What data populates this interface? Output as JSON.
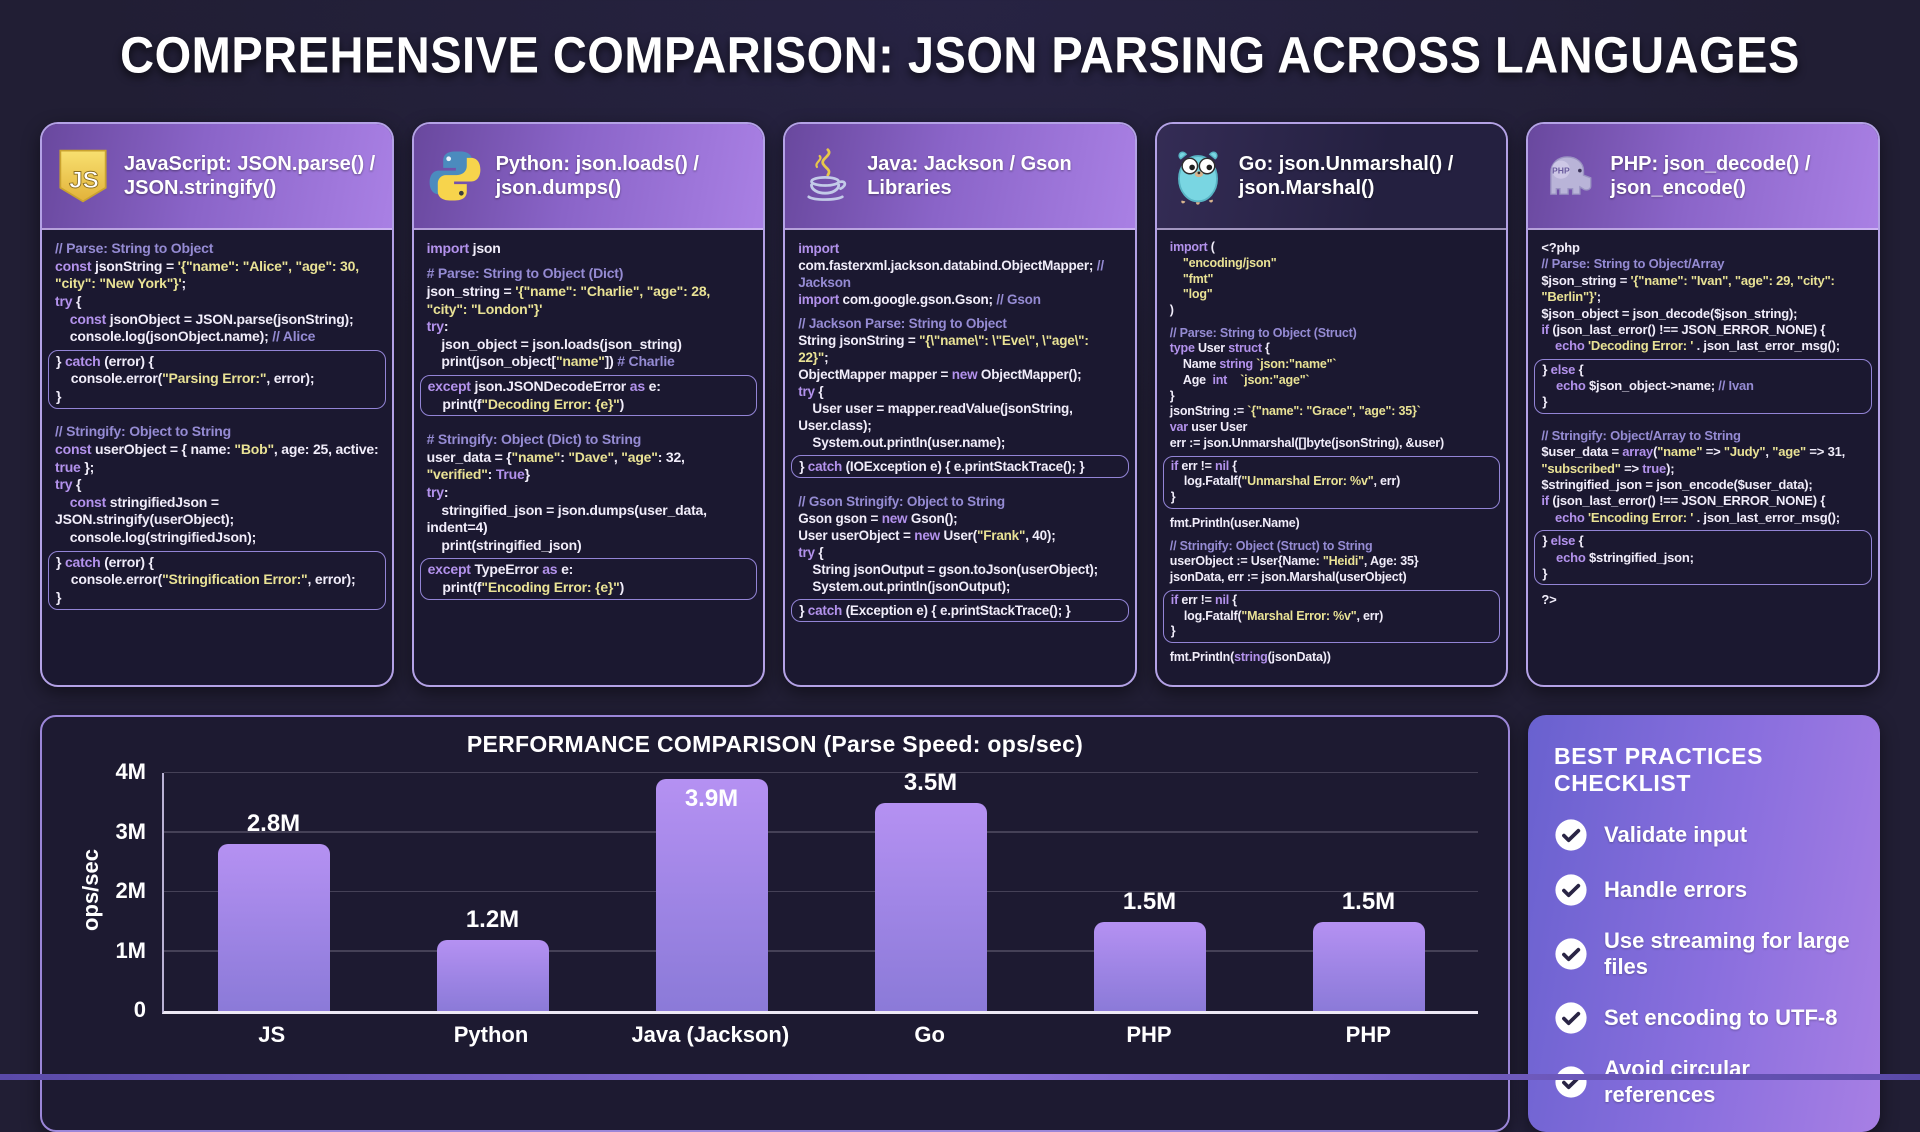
{
  "page": {
    "title": "COMPREHENSIVE COMPARISON: JSON PARSING ACROSS LANGUAGES"
  },
  "theme": {
    "background": "#211e34",
    "panel_border": "#b4a2e6",
    "code_background": "#1b1830",
    "header_gradient_from": "#69489e",
    "header_gradient_to": "#a980e4",
    "keyword_color": "#b392ec",
    "string_color": "#e9e295",
    "comment_color": "#958bd3",
    "bar_gradient_top": "#b591f2",
    "bar_gradient_bottom": "#8b7ad8",
    "checklist_gradient_from": "#6961cf",
    "checklist_gradient_to": "#a77fe4"
  },
  "panels": [
    {
      "id": "javascript",
      "icon": "javascript-logo-icon",
      "title": "JavaScript: JSON.parse() / JSON.stringify()",
      "code": [
        {
          "box": false,
          "lines": [
            "// Parse: String to Object",
            "const jsonString = '{\"name\": \"Alice\", \"age\": 30, \"city\": \"New York\"}';",
            "try {",
            "    const jsonObject = JSON.parse(jsonString);",
            "    console.log(jsonObject.name); // Alice"
          ]
        },
        {
          "box": true,
          "lines": [
            "} catch (error) {",
            "    console.error(\"Parsing Error:\", error);",
            "}"
          ]
        },
        {
          "box": false,
          "lines": [
            "",
            "// Stringify: Object to String",
            "const userObject = { name: \"Bob\", age: 25, active: true };",
            "try {",
            "    const stringifiedJson = JSON.stringify(userObject);",
            "    console.log(stringifiedJson);"
          ]
        },
        {
          "box": true,
          "lines": [
            "} catch (error) {",
            "    console.error(\"Stringification Error:\", error);",
            "}"
          ]
        }
      ]
    },
    {
      "id": "python",
      "icon": "python-logo-icon",
      "title": "Python: json.loads() / json.dumps()",
      "code": [
        {
          "box": false,
          "lines": [
            "import json",
            "",
            "# Parse: String to Object (Dict)",
            "json_string = '{\"name\": \"Charlie\", \"age\": 28, \"city\": \"London\"}'",
            "try:",
            "    json_object = json.loads(json_string)",
            "    print(json_object[\"name\"]) # Charlie"
          ]
        },
        {
          "box": true,
          "lines": [
            "except json.JSONDecodeError as e:",
            "    print(f\"Decoding Error: {e}\")"
          ]
        },
        {
          "box": false,
          "lines": [
            "",
            "# Stringify: Object (Dict) to String",
            "user_data = {\"name\": \"Dave\", \"age\": 32, \"verified\": True}",
            "try:",
            "    stringified_json = json.dumps(user_data, indent=4)",
            "    print(stringified_json)"
          ]
        },
        {
          "box": true,
          "lines": [
            "except TypeError as e:",
            "    print(f\"Encoding Error: {e}\")"
          ]
        }
      ]
    },
    {
      "id": "java",
      "icon": "java-logo-icon",
      "title": "Java: Jackson / Gson Libraries",
      "code": [
        {
          "box": false,
          "lines": [
            "import com.fasterxml.jackson.databind.ObjectMapper; // Jackson",
            "import com.google.gson.Gson; // Gson",
            "",
            "// Jackson Parse: String to Object",
            "String jsonString = \"{\\\"name\\\": \\\"Eve\\\", \\\"age\\\": 22}\";",
            "ObjectMapper mapper = new ObjectMapper();",
            "try {",
            "    User user = mapper.readValue(jsonString, User.class);",
            "    System.out.println(user.name);"
          ]
        },
        {
          "box": true,
          "lines": [
            "} catch (IOException e) { e.printStackTrace(); }"
          ]
        },
        {
          "box": false,
          "lines": [
            "",
            "// Gson Stringify: Object to String",
            "Gson gson = new Gson();",
            "User userObject = new User(\"Frank\", 40);",
            "try {",
            "    String jsonOutput = gson.toJson(userObject);",
            "    System.out.println(jsonOutput);"
          ]
        },
        {
          "box": true,
          "lines": [
            "} catch (Exception e) { e.printStackTrace(); }"
          ]
        }
      ]
    },
    {
      "id": "go",
      "icon": "go-gopher-logo-icon",
      "title": "Go: json.Unmarshal() / json.Marshal()",
      "code": [
        {
          "box": false,
          "lines": [
            "import (",
            "    \"encoding/json\"",
            "    \"fmt\"",
            "    \"log\"",
            ")",
            "",
            "// Parse: String to Object (Struct)",
            "type User struct {",
            "    Name string `json:\"name\"`",
            "    Age  int    `json:\"age\"`",
            "}",
            "jsonString := `{\"name\": \"Grace\", \"age\": 35}`",
            "var user User",
            "err := json.Unmarshal([]byte(jsonString), &user)"
          ]
        },
        {
          "box": true,
          "lines": [
            "if err != nil {",
            "    log.Fatalf(\"Unmarshal Error: %v\", err)",
            "}"
          ]
        },
        {
          "box": false,
          "lines": [
            "fmt.Println(user.Name)",
            "",
            "// Stringify: Object (Struct) to String",
            "userObject := User{Name: \"Heidi\", Age: 35}",
            "jsonData, err := json.Marshal(userObject)"
          ]
        },
        {
          "box": true,
          "lines": [
            "if err != nil {",
            "    log.Fatalf(\"Marshal Error: %v\", err)",
            "}"
          ]
        },
        {
          "box": false,
          "lines": [
            "fmt.Println(string(jsonData))"
          ]
        }
      ]
    },
    {
      "id": "php",
      "icon": "php-elephant-logo-icon",
      "title": "PHP: json_decode() / json_encode()",
      "code": [
        {
          "box": false,
          "lines": [
            "<?php",
            "// Parse: String to Object/Array",
            "$json_string = '{\"name\": \"Ivan\", \"age\": 29, \"city\": \"Berlin\"}';",
            "$json_object = json_decode($json_string);",
            "if (json_last_error() !== JSON_ERROR_NONE) {",
            "    echo 'Decoding Error: ' . json_last_error_msg();"
          ]
        },
        {
          "box": true,
          "lines": [
            "} else {",
            "    echo $json_object->name; // Ivan",
            "}"
          ]
        },
        {
          "box": false,
          "lines": [
            "",
            "// Stringify: Object/Array to String",
            "$user_data = array(\"name\" => \"Judy\", \"age\" => 31, \"subscribed\" => true);",
            "$stringified_json = json_encode($user_data);",
            "if (json_last_error() !== JSON_ERROR_NONE) {",
            "    echo 'Encoding Error: ' . json_last_error_msg();"
          ]
        },
        {
          "box": true,
          "lines": [
            "} else {",
            "    echo $stringified_json;",
            "}"
          ]
        },
        {
          "box": false,
          "lines": [
            "?>"
          ]
        }
      ]
    }
  ],
  "chart_data": {
    "type": "bar",
    "title": "PERFORMANCE COMPARISON (Parse Speed: ops/sec)",
    "categories": [
      "JS",
      "Python",
      "Java (Jackson)",
      "Go",
      "PHP",
      "PHP"
    ],
    "values": [
      2800000,
      1200000,
      3900000,
      3500000,
      1500000,
      1500000
    ],
    "value_labels": [
      "2.8M",
      "1.2M",
      "3.9M",
      "3.5M",
      "1.5M",
      "1.5M"
    ],
    "ylabel": "ops/sec",
    "xlabel": "",
    "ylim": [
      0,
      4000000
    ],
    "yticks": [
      0,
      1000000,
      2000000,
      3000000,
      4000000
    ],
    "ytick_labels": [
      "0",
      "1M",
      "2M",
      "3M",
      "4M"
    ],
    "grid": true,
    "legend": false
  },
  "checklist": {
    "title": "BEST PRACTICES CHECKLIST",
    "icon": "check-circle-icon",
    "items": [
      "Validate input",
      "Handle errors",
      "Use streaming for large files",
      "Set encoding to UTF-8",
      "Avoid circular references"
    ]
  }
}
